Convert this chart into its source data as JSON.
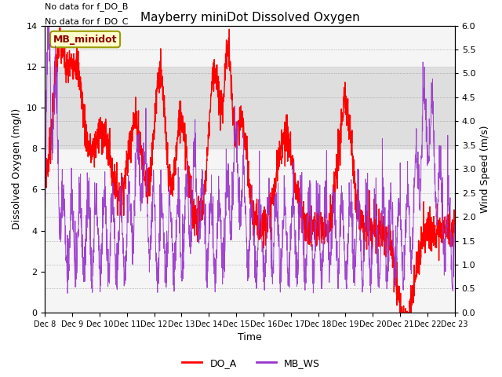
{
  "title": "Mayberry miniDot Dissolved Oxygen",
  "xlabel": "Time",
  "ylabel_left": "Dissolved Oxygen (mg/l)",
  "ylabel_right": "Wind Speed (m/s)",
  "ylim_left": [
    0,
    14
  ],
  "ylim_right": [
    0,
    6
  ],
  "shade_band": [
    8,
    12
  ],
  "shade_color": "#d0d0d0",
  "no_data_text": [
    "No data for f_DO_B",
    "No data for f_DO_C"
  ],
  "legend_box_label": "MB_minidot",
  "legend_box_bg": "#ffffcc",
  "legend_box_edge": "#999900",
  "legend_box_text_color": "#8b0000",
  "do_color": "#ff0000",
  "ws_color": "#9932cc",
  "bottom_legend": [
    {
      "label": "DO_A",
      "color": "#ff0000"
    },
    {
      "label": "MB_WS",
      "color": "#9932cc"
    }
  ],
  "bg_color": "#ffffff",
  "plot_bg": "#f5f5f5"
}
